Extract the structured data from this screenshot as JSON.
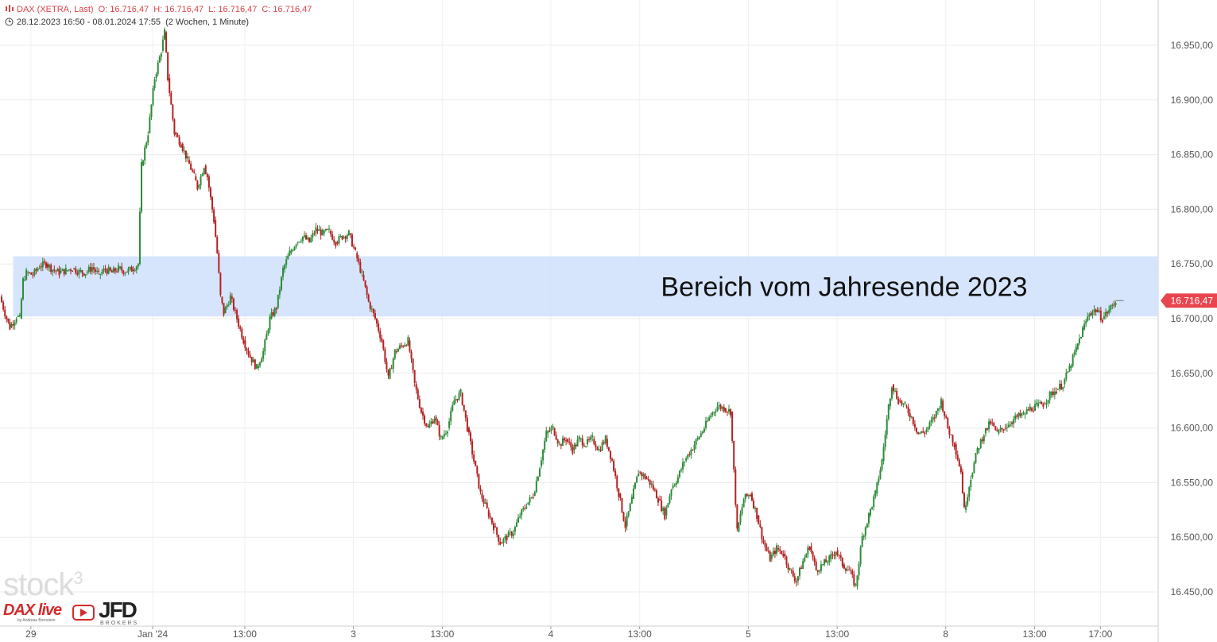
{
  "header": {
    "symbol": "DAX (XETRA, Last)",
    "open": "O: 16.716,47",
    "high": "H: 16.716,47",
    "low": "L: 16.716,47",
    "close": "C: 16.716,47",
    "range": "28.12.2023 16:50 - 08.01.2024 17:55",
    "period": "(2 Wochen, 1 Minute)"
  },
  "watermark": {
    "brand": "stock",
    "sup": "3"
  },
  "logo": {
    "dax": "DAX live",
    "by": "by Andreas Bernstein",
    "jfd": "JFD",
    "brokers": "BROKERS"
  },
  "colors": {
    "up": "#2e8b3a",
    "down": "#b22222",
    "zone": "#cfe0fb",
    "price_tag": "#e8454f",
    "text": "#555555"
  },
  "chart_data": {
    "type": "candlestick",
    "title": "DAX (XETRA, Last)",
    "timeframe": "1 Minute",
    "ylim": [
      16420,
      16980
    ],
    "y_ticks": [
      16450,
      16500,
      16550,
      16600,
      16650,
      16700,
      16750,
      16800,
      16850,
      16900,
      16950
    ],
    "y_tick_labels": [
      "16.450,00",
      "16.500,00",
      "16.550,00",
      "16.600,00",
      "16.650,00",
      "16.700,00",
      "16.750,00",
      "16.800,00",
      "16.850,00",
      "16.900,00",
      "16.950,00"
    ],
    "x_labels": [
      "29",
      "Jan '24",
      "13:00",
      "3",
      "13:00",
      "4",
      "13:00",
      "5",
      "13:00",
      "8",
      "13:00",
      "17:00"
    ],
    "x_label_slots": [
      6,
      43,
      71,
      104,
      131,
      164,
      191,
      224,
      251,
      284,
      311,
      331
    ],
    "price_series": [
      [
        0,
        16720
      ],
      [
        2,
        16700
      ],
      [
        3,
        16692
      ],
      [
        5,
        16702
      ],
      [
        6,
        16700
      ],
      [
        7,
        16735
      ],
      [
        8,
        16742
      ],
      [
        10,
        16740
      ],
      [
        12,
        16748
      ],
      [
        14,
        16750
      ],
      [
        16,
        16745
      ],
      [
        18,
        16742
      ],
      [
        20,
        16744
      ],
      [
        22,
        16746
      ],
      [
        24,
        16743
      ],
      [
        26,
        16742
      ],
      [
        28,
        16747
      ],
      [
        30,
        16740
      ],
      [
        32,
        16745
      ],
      [
        34,
        16742
      ],
      [
        36,
        16746
      ],
      [
        38,
        16743
      ],
      [
        40,
        16745
      ],
      [
        42,
        16750
      ],
      [
        43,
        16840
      ],
      [
        45,
        16870
      ],
      [
        47,
        16920
      ],
      [
        49,
        16945
      ],
      [
        50,
        16962
      ],
      [
        51,
        16920
      ],
      [
        53,
        16870
      ],
      [
        55,
        16860
      ],
      [
        57,
        16845
      ],
      [
        59,
        16830
      ],
      [
        60,
        16820
      ],
      [
        62,
        16840
      ],
      [
        63,
        16830
      ],
      [
        65,
        16790
      ],
      [
        66,
        16760
      ],
      [
        67,
        16720
      ],
      [
        68,
        16705
      ],
      [
        70,
        16720
      ],
      [
        72,
        16700
      ],
      [
        74,
        16680
      ],
      [
        76,
        16665
      ],
      [
        78,
        16655
      ],
      [
        80,
        16670
      ],
      [
        82,
        16700
      ],
      [
        84,
        16710
      ],
      [
        86,
        16745
      ],
      [
        88,
        16760
      ],
      [
        90,
        16770
      ],
      [
        92,
        16775
      ],
      [
        94,
        16770
      ],
      [
        96,
        16782
      ],
      [
        98,
        16778
      ],
      [
        100,
        16780
      ],
      [
        102,
        16770
      ],
      [
        104,
        16775
      ],
      [
        106,
        16778
      ],
      [
        108,
        16760
      ],
      [
        110,
        16740
      ],
      [
        112,
        16715
      ],
      [
        114,
        16700
      ],
      [
        116,
        16680
      ],
      [
        118,
        16645
      ],
      [
        120,
        16670
      ],
      [
        122,
        16675
      ],
      [
        124,
        16680
      ],
      [
        126,
        16640
      ],
      [
        128,
        16615
      ],
      [
        130,
        16600
      ],
      [
        132,
        16610
      ],
      [
        134,
        16590
      ],
      [
        136,
        16600
      ],
      [
        138,
        16625
      ],
      [
        140,
        16632
      ],
      [
        142,
        16600
      ],
      [
        144,
        16570
      ],
      [
        146,
        16540
      ],
      [
        148,
        16525
      ],
      [
        150,
        16510
      ],
      [
        152,
        16495
      ],
      [
        154,
        16500
      ],
      [
        156,
        16505
      ],
      [
        158,
        16520
      ],
      [
        160,
        16530
      ],
      [
        162,
        16538
      ],
      [
        164,
        16565
      ],
      [
        166,
        16595
      ],
      [
        168,
        16600
      ],
      [
        170,
        16585
      ],
      [
        172,
        16590
      ],
      [
        174,
        16580
      ],
      [
        176,
        16590
      ],
      [
        178,
        16585
      ],
      [
        180,
        16590
      ],
      [
        182,
        16580
      ],
      [
        184,
        16590
      ],
      [
        186,
        16570
      ],
      [
        188,
        16540
      ],
      [
        190,
        16510
      ],
      [
        192,
        16535
      ],
      [
        194,
        16560
      ],
      [
        196,
        16555
      ],
      [
        198,
        16548
      ],
      [
        200,
        16535
      ],
      [
        202,
        16520
      ],
      [
        204,
        16545
      ],
      [
        206,
        16555
      ],
      [
        208,
        16570
      ],
      [
        210,
        16580
      ],
      [
        212,
        16590
      ],
      [
        214,
        16600
      ],
      [
        216,
        16612
      ],
      [
        218,
        16620
      ],
      [
        220,
        16618
      ],
      [
        222,
        16615
      ],
      [
        224,
        16505
      ],
      [
        226,
        16535
      ],
      [
        228,
        16540
      ],
      [
        230,
        16520
      ],
      [
        232,
        16495
      ],
      [
        234,
        16480
      ],
      [
        236,
        16490
      ],
      [
        238,
        16485
      ],
      [
        240,
        16470
      ],
      [
        242,
        16460
      ],
      [
        244,
        16478
      ],
      [
        246,
        16492
      ],
      [
        248,
        16470
      ],
      [
        250,
        16475
      ],
      [
        252,
        16480
      ],
      [
        254,
        16488
      ],
      [
        256,
        16475
      ],
      [
        258,
        16470
      ],
      [
        260,
        16455
      ],
      [
        262,
        16500
      ],
      [
        264,
        16520
      ],
      [
        266,
        16540
      ],
      [
        268,
        16570
      ],
      [
        270,
        16620
      ],
      [
        271,
        16640
      ],
      [
        273,
        16625
      ],
      [
        275,
        16620
      ],
      [
        277,
        16610
      ],
      [
        279,
        16595
      ],
      [
        281,
        16596
      ],
      [
        284,
        16610
      ],
      [
        286,
        16625
      ],
      [
        288,
        16600
      ],
      [
        290,
        16585
      ],
      [
        292,
        16560
      ],
      [
        293,
        16525
      ],
      [
        295,
        16555
      ],
      [
        297,
        16580
      ],
      [
        299,
        16595
      ],
      [
        301,
        16605
      ],
      [
        303,
        16595
      ],
      [
        305,
        16600
      ],
      [
        307,
        16605
      ],
      [
        309,
        16610
      ],
      [
        311,
        16612
      ],
      [
        313,
        16618
      ],
      [
        315,
        16620
      ],
      [
        317,
        16622
      ],
      [
        319,
        16630
      ],
      [
        321,
        16635
      ],
      [
        323,
        16640
      ],
      [
        325,
        16655
      ],
      [
        327,
        16672
      ],
      [
        329,
        16690
      ],
      [
        331,
        16705
      ],
      [
        333,
        16708
      ],
      [
        335,
        16700
      ],
      [
        337,
        16708
      ],
      [
        339,
        16716
      ]
    ],
    "annotations": [
      {
        "type": "zone",
        "y_from": 16702,
        "y_to": 16757,
        "x_from": 4,
        "text": "Bereich vom  Jahresende 2023"
      }
    ],
    "last_price_label": "16.716,47",
    "last_price": 16716.47
  }
}
